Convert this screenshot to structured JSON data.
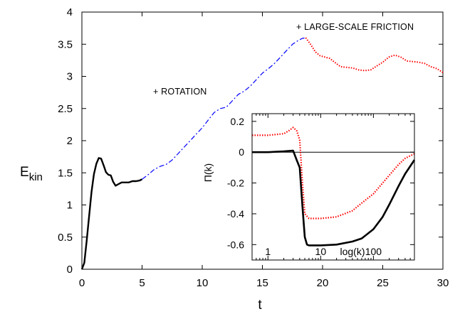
{
  "chart_data": [
    {
      "type": "line",
      "xlabel": "t",
      "ylabel": "E",
      "ylabel_sub": "kin",
      "xlim": [
        0,
        30
      ],
      "ylim": [
        0,
        4
      ],
      "xticks": [
        0,
        5,
        10,
        15,
        20,
        25,
        30
      ],
      "yticks": [
        0,
        0.5,
        1,
        1.5,
        2,
        2.5,
        3,
        3.5,
        4
      ],
      "ytick_labels": [
        "0",
        "0.5",
        "1",
        "1.5",
        "2",
        "2.5",
        "3",
        "3.5",
        "4"
      ],
      "grid": false,
      "annotations": [
        {
          "text": "+ ROTATION",
          "x": 6,
          "y": 2.72
        },
        {
          "text": "+ LARGE-SCALE FRICTION",
          "x": 17.6,
          "y": 3.74
        }
      ],
      "series": [
        {
          "style": "solid",
          "color": "#000000",
          "x": [
            0,
            0.2,
            0.4,
            0.6,
            0.8,
            1.0,
            1.2,
            1.4,
            1.6,
            1.8,
            2.0,
            2.2,
            2.4,
            2.6,
            2.8,
            3.0,
            3.3,
            3.6,
            3.9,
            4.2,
            4.5,
            4.8,
            5.0
          ],
          "y": [
            0,
            0.1,
            0.45,
            0.82,
            1.2,
            1.48,
            1.64,
            1.73,
            1.72,
            1.62,
            1.51,
            1.47,
            1.46,
            1.36,
            1.3,
            1.32,
            1.35,
            1.35,
            1.35,
            1.37,
            1.37,
            1.38,
            1.4
          ]
        },
        {
          "style": "dash-dot",
          "color": "#0000ff",
          "x": [
            5.0,
            5.5,
            6.0,
            6.5,
            7.0,
            7.5,
            8.0,
            8.5,
            9.0,
            9.5,
            10.0,
            10.5,
            11.0,
            11.5,
            12.0,
            12.5,
            13.0,
            13.5,
            14.0,
            14.5,
            15.0,
            15.5,
            16.0,
            16.5,
            17.0,
            17.5,
            18.0,
            18.3,
            18.6
          ],
          "y": [
            1.4,
            1.47,
            1.55,
            1.6,
            1.63,
            1.7,
            1.8,
            1.9,
            2.0,
            2.1,
            2.2,
            2.32,
            2.44,
            2.5,
            2.52,
            2.62,
            2.72,
            2.77,
            2.85,
            2.95,
            3.05,
            3.12,
            3.2,
            3.3,
            3.4,
            3.5,
            3.56,
            3.59,
            3.6
          ]
        },
        {
          "style": "dotted",
          "color": "#ff0000",
          "x": [
            18.6,
            19.0,
            19.4,
            19.8,
            20.2,
            20.6,
            21.0,
            21.5,
            22.0,
            22.5,
            23.0,
            23.5,
            24.0,
            24.5,
            25.0,
            25.5,
            26.0,
            26.5,
            27.0,
            27.5,
            28.0,
            28.5,
            29.0,
            29.5,
            30.0
          ],
          "y": [
            3.6,
            3.5,
            3.38,
            3.32,
            3.3,
            3.28,
            3.22,
            3.15,
            3.14,
            3.13,
            3.1,
            3.09,
            3.1,
            3.16,
            3.22,
            3.3,
            3.33,
            3.3,
            3.24,
            3.23,
            3.22,
            3.2,
            3.15,
            3.12,
            3.06
          ]
        }
      ]
    },
    {
      "type": "line",
      "role": "inset",
      "xlabel": "log(k)",
      "ylabel": "Π(k)",
      "xscale": "log",
      "xlim": [
        0.5,
        600
      ],
      "ylim": [
        -0.7,
        0.25
      ],
      "xticks": [
        1,
        10,
        100
      ],
      "xtick_labels": [
        "1",
        "10",
        "100"
      ],
      "yticks": [
        0.2,
        0,
        -0.2,
        -0.4,
        -0.6
      ],
      "ytick_labels": [
        "0.2",
        "0",
        "-0.2",
        "-0.4",
        "-0.6"
      ],
      "reference_line_y": 0,
      "series": [
        {
          "style": "solid",
          "color": "#000000",
          "x": [
            0.5,
            1,
            2,
            3,
            3.5,
            4,
            4.5,
            5,
            5.5,
            6,
            10,
            20,
            40,
            60,
            100,
            150,
            200,
            300,
            400,
            600
          ],
          "y": [
            0,
            0,
            0.005,
            0.01,
            -0.05,
            -0.1,
            -0.35,
            -0.55,
            -0.6,
            -0.605,
            -0.605,
            -0.6,
            -0.58,
            -0.56,
            -0.5,
            -0.42,
            -0.34,
            -0.22,
            -0.14,
            -0.05
          ]
        },
        {
          "style": "dotted",
          "color": "#ff0000",
          "x": [
            0.5,
            1,
            2,
            2.5,
            3,
            3.5,
            4,
            4.5,
            5,
            6,
            10,
            20,
            40,
            60,
            100,
            150,
            200,
            300,
            400,
            600
          ],
          "y": [
            0.11,
            0.11,
            0.12,
            0.14,
            0.16,
            0.14,
            0.08,
            -0.2,
            -0.4,
            -0.43,
            -0.43,
            -0.42,
            -0.38,
            -0.33,
            -0.27,
            -0.2,
            -0.15,
            -0.08,
            -0.04,
            -0.01
          ]
        }
      ]
    }
  ]
}
